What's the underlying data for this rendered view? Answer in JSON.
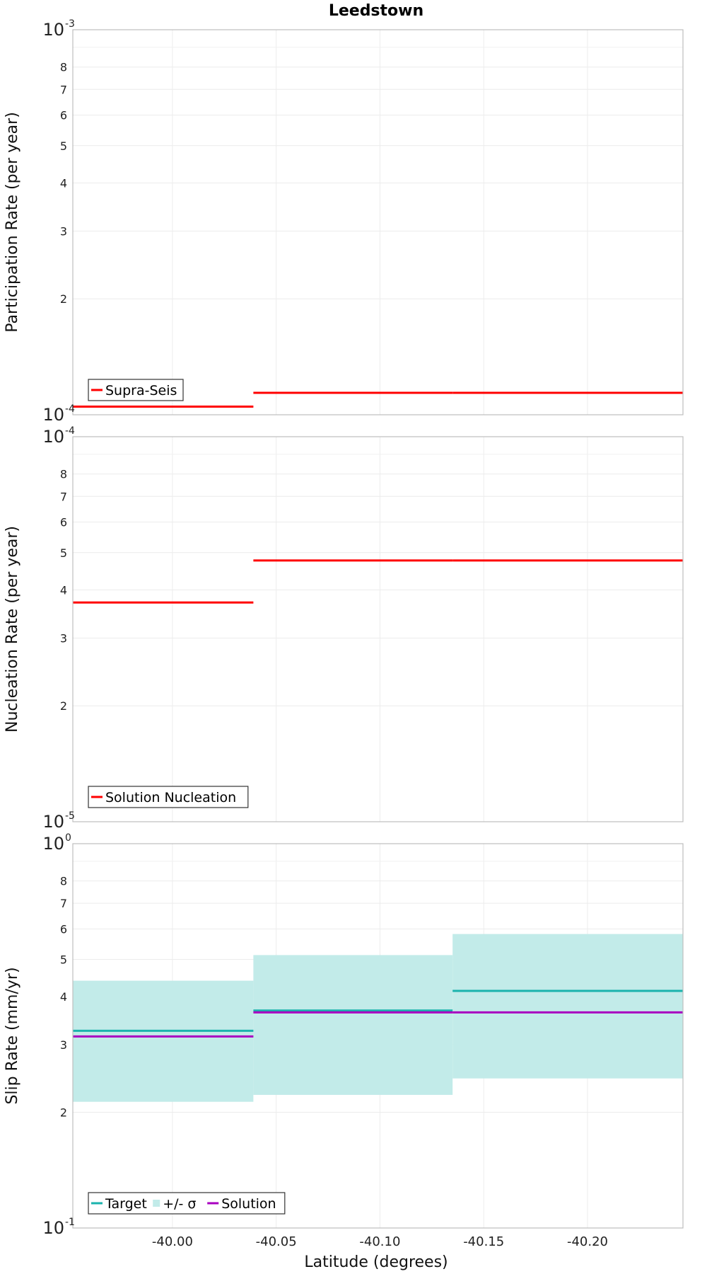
{
  "chart_data": [
    {
      "type": "line",
      "title": "Leedstown",
      "ylabel": "Participation Rate (per year)",
      "xlabel": "",
      "yscale": "log",
      "ylim": [
        0.0001,
        0.001
      ],
      "xlim": [
        -39.952,
        -40.246
      ],
      "grid": true,
      "y_major_ticks": [
        {
          "value": 0.0001,
          "base": "10",
          "exp": "-4"
        },
        {
          "value": 0.001,
          "base": "10",
          "exp": "-3"
        }
      ],
      "y_minor_ticks": [
        {
          "value": 0.0002,
          "label": "2"
        },
        {
          "value": 0.0003,
          "label": "3"
        },
        {
          "value": 0.0004,
          "label": "4"
        },
        {
          "value": 0.0005,
          "label": "5"
        },
        {
          "value": 0.0006,
          "label": "6"
        },
        {
          "value": 0.0007,
          "label": "7"
        },
        {
          "value": 0.0008,
          "label": "8"
        }
      ],
      "x_grid": [
        -40.0,
        -40.05,
        -40.1,
        -40.15,
        -40.2
      ],
      "legend_position": "bottom-left",
      "series": [
        {
          "name": "Supra-Seis",
          "color": "#ff0000",
          "kind": "step",
          "segments": [
            {
              "x0": -39.952,
              "x1": -40.039,
              "y": 0.000105
            },
            {
              "x0": -40.039,
              "x1": -40.135,
              "y": 0.000114
            },
            {
              "x0": -40.135,
              "x1": -40.246,
              "y": 0.000114
            }
          ]
        }
      ]
    },
    {
      "type": "line",
      "title": "",
      "ylabel": "Nucleation Rate (per year)",
      "xlabel": "",
      "yscale": "log",
      "ylim": [
        1e-05,
        0.0001
      ],
      "xlim": [
        -39.952,
        -40.246
      ],
      "grid": true,
      "y_major_ticks": [
        {
          "value": 1e-05,
          "base": "10",
          "exp": "-5"
        },
        {
          "value": 0.0001,
          "base": "10",
          "exp": "-4"
        }
      ],
      "y_minor_ticks": [
        {
          "value": 2e-05,
          "label": "2"
        },
        {
          "value": 3e-05,
          "label": "3"
        },
        {
          "value": 4e-05,
          "label": "4"
        },
        {
          "value": 5e-05,
          "label": "5"
        },
        {
          "value": 6e-05,
          "label": "6"
        },
        {
          "value": 7e-05,
          "label": "7"
        },
        {
          "value": 8e-05,
          "label": "8"
        }
      ],
      "x_grid": [
        -40.0,
        -40.05,
        -40.1,
        -40.15,
        -40.2
      ],
      "legend_position": "bottom-left",
      "series": [
        {
          "name": "Solution Nucleation",
          "color": "#ff0000",
          "kind": "step",
          "segments": [
            {
              "x0": -39.952,
              "x1": -40.039,
              "y": 3.71e-05
            },
            {
              "x0": -40.039,
              "x1": -40.135,
              "y": 4.77e-05
            },
            {
              "x0": -40.135,
              "x1": -40.246,
              "y": 4.77e-05
            }
          ]
        }
      ]
    },
    {
      "type": "line",
      "title": "",
      "ylabel": "Slip Rate (mm/yr)",
      "xlabel": "Latitude (degrees)",
      "yscale": "log",
      "ylim": [
        0.1,
        1.0
      ],
      "xlim": [
        -39.952,
        -40.246
      ],
      "grid": true,
      "y_major_ticks": [
        {
          "value": 0.1,
          "base": "10",
          "exp": "-1"
        },
        {
          "value": 1.0,
          "base": "10",
          "exp": "0"
        }
      ],
      "y_minor_ticks": [
        {
          "value": 0.2,
          "label": "2"
        },
        {
          "value": 0.3,
          "label": "3"
        },
        {
          "value": 0.4,
          "label": "4"
        },
        {
          "value": 0.5,
          "label": "5"
        },
        {
          "value": 0.6,
          "label": "6"
        },
        {
          "value": 0.7,
          "label": "7"
        },
        {
          "value": 0.8,
          "label": "8"
        }
      ],
      "x_ticks": [
        {
          "value": -40.0,
          "label": "-40.00"
        },
        {
          "value": -40.05,
          "label": "-40.05"
        },
        {
          "value": -40.1,
          "label": "-40.10"
        },
        {
          "value": -40.15,
          "label": "-40.15"
        },
        {
          "value": -40.2,
          "label": "-40.20"
        }
      ],
      "x_grid": [
        -40.0,
        -40.05,
        -40.1,
        -40.15,
        -40.2
      ],
      "legend_position": "bottom-left",
      "bands": [
        {
          "name": "+/- σ",
          "color": "#c2ebe9",
          "segments": [
            {
              "x0": -39.952,
              "x1": -40.039,
              "y0": 0.213,
              "y1": 0.44
            },
            {
              "x0": -40.039,
              "x1": -40.135,
              "y0": 0.222,
              "y1": 0.513
            },
            {
              "x0": -40.135,
              "x1": -40.246,
              "y0": 0.245,
              "y1": 0.582
            }
          ]
        }
      ],
      "series": [
        {
          "name": "Target",
          "color": "#1ab3ad",
          "kind": "step",
          "segments": [
            {
              "x0": -39.952,
              "x1": -40.039,
              "y": 0.326
            },
            {
              "x0": -40.039,
              "x1": -40.135,
              "y": 0.368
            },
            {
              "x0": -40.135,
              "x1": -40.246,
              "y": 0.414
            }
          ]
        },
        {
          "name": "Solution",
          "color": "#a800c0",
          "kind": "step",
          "segments": [
            {
              "x0": -39.952,
              "x1": -40.039,
              "y": 0.315
            },
            {
              "x0": -40.039,
              "x1": -40.135,
              "y": 0.364
            },
            {
              "x0": -40.135,
              "x1": -40.246,
              "y": 0.364
            }
          ]
        }
      ]
    }
  ]
}
